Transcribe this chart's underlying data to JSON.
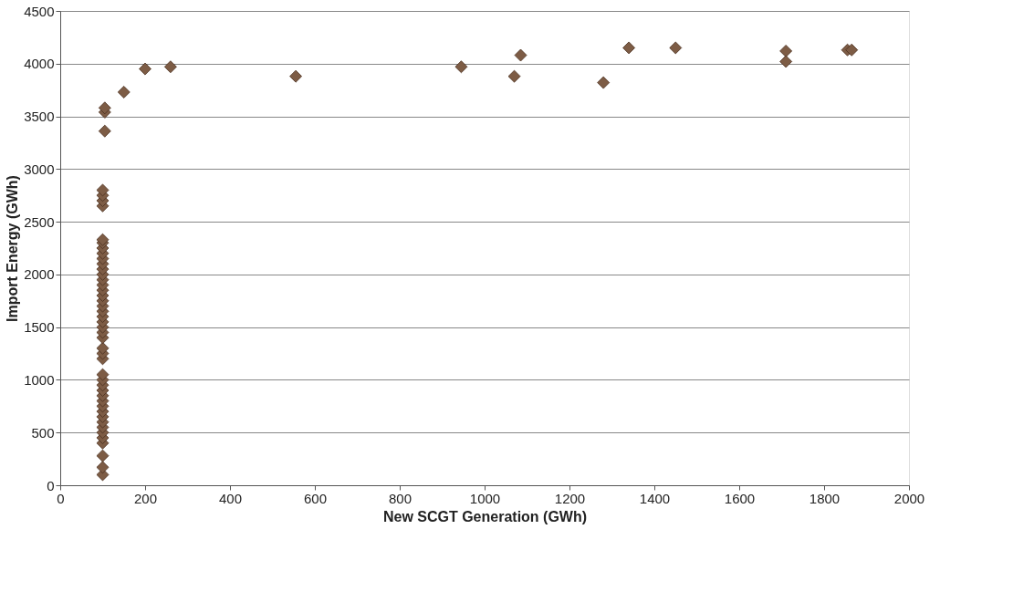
{
  "chart_data": {
    "type": "scatter",
    "xlabel": "New SCGT Generation (GWh)",
    "ylabel": "Import Energy (GWh)",
    "xlim": [
      0,
      2000
    ],
    "xticks": [
      0,
      200,
      400,
      600,
      800,
      1000,
      1200,
      1400,
      1600,
      1800,
      2000
    ],
    "ylim": [
      0,
      4500
    ],
    "yticks": [
      0,
      500,
      1000,
      1500,
      2000,
      2500,
      3000,
      3500,
      4000,
      4500
    ],
    "grid": "y",
    "marker": "diamond",
    "series": [
      {
        "color": "#7d5c45",
        "x": [
          100,
          100,
          100,
          100,
          100,
          100,
          100,
          100,
          100,
          100,
          100,
          100,
          100,
          100,
          100,
          100,
          100,
          100,
          100,
          100,
          100,
          100,
          100,
          100,
          100,
          100,
          100,
          100,
          100,
          100,
          100,
          100,
          100,
          100,
          100,
          100,
          100,
          100,
          100,
          100,
          100,
          100,
          100,
          100,
          105,
          105,
          105,
          150,
          200,
          260,
          555,
          945,
          1070,
          1085,
          1280,
          1340,
          1450,
          1710,
          1710,
          1855,
          1865
        ],
        "values": [
          100,
          170,
          280,
          400,
          450,
          500,
          550,
          600,
          650,
          700,
          750,
          800,
          850,
          900,
          950,
          1000,
          1050,
          1200,
          1250,
          1300,
          1400,
          1450,
          1500,
          1550,
          1600,
          1650,
          1700,
          1750,
          1800,
          1850,
          1900,
          1950,
          2000,
          2050,
          2100,
          2150,
          2200,
          2250,
          2300,
          2330,
          2650,
          2700,
          2750,
          2800,
          3360,
          3540,
          3580,
          3730,
          3950,
          3970,
          3880,
          3970,
          3880,
          4080,
          3820,
          4150,
          4150,
          4120,
          4020,
          4130,
          4130
        ]
      }
    ]
  }
}
